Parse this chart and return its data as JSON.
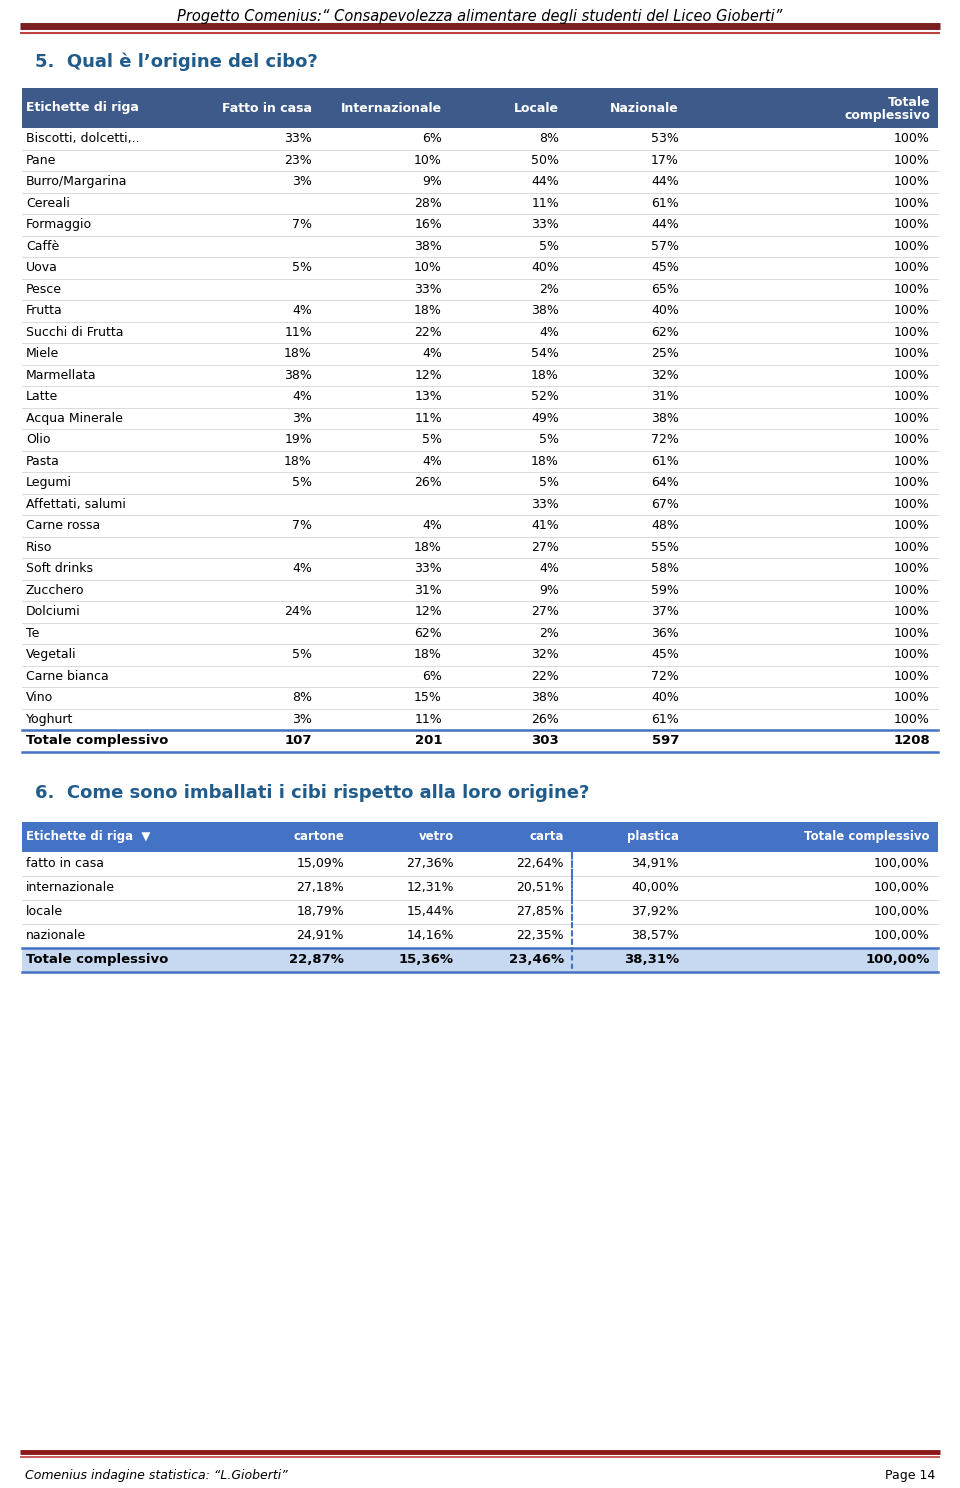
{
  "page_title": "Progetto Comenius:“ Consapevolezza alimentare degli studenti del Liceo Gioberti”",
  "page_footer_left": "Comenius indagine statistica: “L.Gioberti”",
  "page_footer_right": "Page 14",
  "section5_title": "5.  Qual è l’origine del cibo?",
  "section6_title": "6.  Come sono imballati i cibi rispetto alla loro origine?",
  "table1_headers": [
    "Etichette di riga",
    "Fatto in casa",
    "Internazionale",
    "Locale",
    "Nazionale",
    "Totale\ncomplessivo"
  ],
  "table1_rows": [
    [
      "Biscotti, dolcetti,..",
      "33%",
      "6%",
      "8%",
      "53%",
      "100%"
    ],
    [
      "Pane",
      "23%",
      "10%",
      "50%",
      "17%",
      "100%"
    ],
    [
      "Burro/Margarina",
      "3%",
      "9%",
      "44%",
      "44%",
      "100%"
    ],
    [
      "Cereali",
      "",
      "28%",
      "11%",
      "61%",
      "100%"
    ],
    [
      "Formaggio",
      "7%",
      "16%",
      "33%",
      "44%",
      "100%"
    ],
    [
      "Caffè",
      "",
      "38%",
      "5%",
      "57%",
      "100%"
    ],
    [
      "Uova",
      "5%",
      "10%",
      "40%",
      "45%",
      "100%"
    ],
    [
      "Pesce",
      "",
      "33%",
      "2%",
      "65%",
      "100%"
    ],
    [
      "Frutta",
      "4%",
      "18%",
      "38%",
      "40%",
      "100%"
    ],
    [
      "Succhi di Frutta",
      "11%",
      "22%",
      "4%",
      "62%",
      "100%"
    ],
    [
      "Miele",
      "18%",
      "4%",
      "54%",
      "25%",
      "100%"
    ],
    [
      "Marmellata",
      "38%",
      "12%",
      "18%",
      "32%",
      "100%"
    ],
    [
      "Latte",
      "4%",
      "13%",
      "52%",
      "31%",
      "100%"
    ],
    [
      "Acqua Minerale",
      "3%",
      "11%",
      "49%",
      "38%",
      "100%"
    ],
    [
      "Olio",
      "19%",
      "5%",
      "5%",
      "72%",
      "100%"
    ],
    [
      "Pasta",
      "18%",
      "4%",
      "18%",
      "61%",
      "100%"
    ],
    [
      "Legumi",
      "5%",
      "26%",
      "5%",
      "64%",
      "100%"
    ],
    [
      "Affettati, salumi",
      "",
      "",
      "33%",
      "67%",
      "100%"
    ],
    [
      "Carne rossa",
      "7%",
      "4%",
      "41%",
      "48%",
      "100%"
    ],
    [
      "Riso",
      "",
      "18%",
      "27%",
      "55%",
      "100%"
    ],
    [
      "Soft drinks",
      "4%",
      "33%",
      "4%",
      "58%",
      "100%"
    ],
    [
      "Zucchero",
      "",
      "31%",
      "9%",
      "59%",
      "100%"
    ],
    [
      "Dolciumi",
      "24%",
      "12%",
      "27%",
      "37%",
      "100%"
    ],
    [
      "Te",
      "",
      "62%",
      "2%",
      "36%",
      "100%"
    ],
    [
      "Vegetali",
      "5%",
      "18%",
      "32%",
      "45%",
      "100%"
    ],
    [
      "Carne bianca",
      "",
      "6%",
      "22%",
      "72%",
      "100%"
    ],
    [
      "Vino",
      "8%",
      "15%",
      "38%",
      "40%",
      "100%"
    ],
    [
      "Yoghurt",
      "3%",
      "11%",
      "26%",
      "61%",
      "100%"
    ],
    [
      "Totale complessivo",
      "107",
      "201",
      "303",
      "597",
      "1208"
    ]
  ],
  "table2_headers": [
    "Etichette di riga",
    "cartone",
    "vetro",
    "carta",
    "plastica",
    "Totale complessivo"
  ],
  "table2_filter_icon": true,
  "table2_rows": [
    [
      "fatto in casa",
      "15,09%",
      "27,36%",
      "22,64%",
      "34,91%",
      "100,00%"
    ],
    [
      "internazionale",
      "27,18%",
      "12,31%",
      "20,51%",
      "40,00%",
      "100,00%"
    ],
    [
      "locale",
      "18,79%",
      "15,44%",
      "27,85%",
      "37,92%",
      "100,00%"
    ],
    [
      "nazionale",
      "24,91%",
      "14,16%",
      "22,35%",
      "38,57%",
      "100,00%"
    ],
    [
      "Totale complessivo",
      "22,87%",
      "15,36%",
      "23,46%",
      "38,31%",
      "100,00%"
    ]
  ],
  "header_bg": "#3B5998",
  "header_text": "#FFFFFF",
  "table2_header_bg": "#4472C4",
  "table2_total_bg": "#C6D9F1",
  "separator_color_dark": "#7B2020",
  "separator_color_light": "#C04040",
  "section_title_color": "#1F5C8B",
  "table_border_color": "#4472C4",
  "row_divider_color": "#CCCCCC",
  "footer_line_color": "#8B1A1A",
  "page_bg": "#FFFFFF"
}
